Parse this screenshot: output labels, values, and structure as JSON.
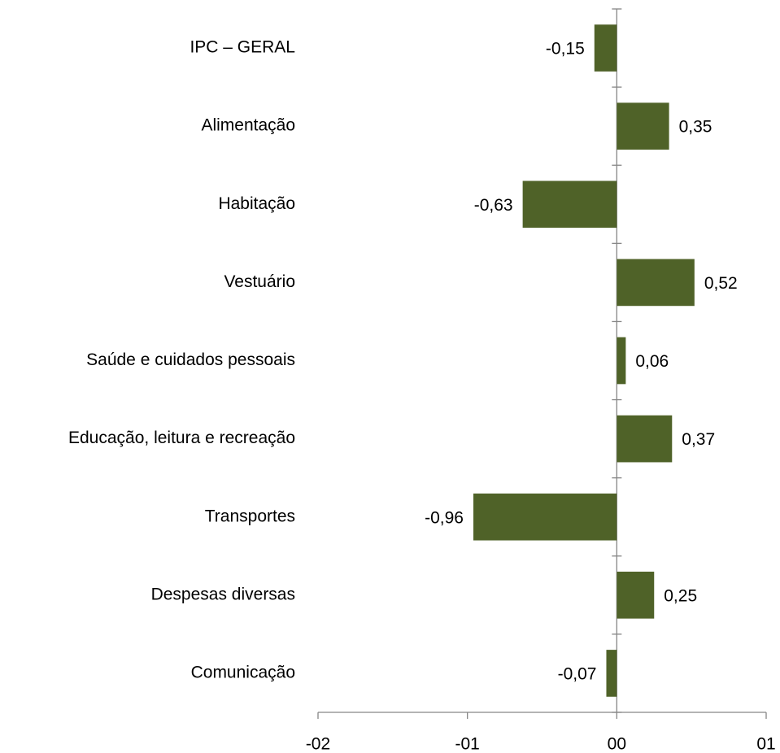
{
  "chart_data": {
    "type": "barh",
    "categories": [
      "IPC – GERAL",
      "Alimentação",
      "Habitação",
      "Vestuário",
      "Saúde e cuidados pessoais",
      "Educação, leitura e recreação",
      "Transportes",
      "Despesas diversas",
      "Comunicação"
    ],
    "values": [
      -0.15,
      0.35,
      -0.63,
      0.52,
      0.06,
      0.37,
      -0.96,
      0.25,
      -0.07
    ],
    "value_labels": [
      "-0,15",
      "0,35",
      "-0,63",
      "0,52",
      "0,06",
      "0,37",
      "-0,96",
      "0,25",
      "-0,07"
    ],
    "color": "#4f6228",
    "xlim": [
      -2,
      1
    ],
    "xticks": [
      {
        "value": -2,
        "label": "-02"
      },
      {
        "value": -1,
        "label": "-01"
      },
      {
        "value": 0,
        "label": "00"
      },
      {
        "value": 1,
        "label": "01"
      }
    ],
    "grid": false
  }
}
